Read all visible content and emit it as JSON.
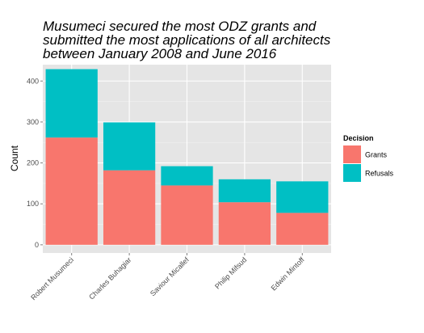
{
  "chart_data": {
    "type": "bar",
    "stacked": true,
    "title": "Musumeci secured the most ODZ grants and submitted the most applications of all architects between January 2008 and June 2016",
    "title_lines": [
      "Musumeci secured the most ODZ grants and",
      "submitted the most applications of all architects",
      "between January 2008 and June 2016"
    ],
    "xlabel": "",
    "ylabel": "Count",
    "ylim": [
      -20,
      440
    ],
    "yticks": [
      0,
      100,
      200,
      300,
      400
    ],
    "grid": true,
    "legend_position": "right",
    "legend_title": "Decision",
    "categories": [
      "Robert Musumeci",
      "Charles Buhagiar",
      "Saviour Micallef",
      "Philip Mifsud",
      "Edwin Mintoff"
    ],
    "series": [
      {
        "name": "Grants",
        "color": "#F8766D",
        "values": [
          262,
          182,
          145,
          104,
          78
        ]
      },
      {
        "name": "Refusals",
        "color": "#00BFC4",
        "values": [
          167,
          117,
          47,
          56,
          77
        ]
      }
    ],
    "colors": {
      "panel_background": "#E5E5E5",
      "grid_major": "#FFFFFF",
      "grid_minor": "#F2F2F2"
    }
  }
}
